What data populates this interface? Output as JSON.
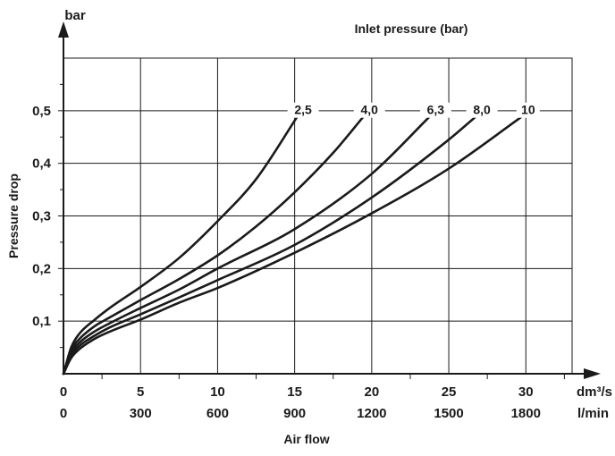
{
  "chart_data": {
    "type": "line",
    "title": "Inlet pressure (bar)",
    "xlabel": "Air flow",
    "ylabel": "Pressure drop",
    "y_unit": "bar",
    "x_unit_primary": "dm³/s",
    "x_unit_secondary": "l/min",
    "xlim": [
      0,
      33
    ],
    "ylim": [
      0,
      0.6
    ],
    "x_ticks": [
      {
        "value": 0,
        "label": "0",
        "sub": "0"
      },
      {
        "value": 5,
        "label": "5",
        "sub": "300"
      },
      {
        "value": 10,
        "label": "10",
        "sub": "600"
      },
      {
        "value": 15,
        "label": "15",
        "sub": "900"
      },
      {
        "value": 20,
        "label": "20",
        "sub": "1200"
      },
      {
        "value": 25,
        "label": "25",
        "sub": "1500"
      },
      {
        "value": 30,
        "label": "30",
        "sub": "1800"
      }
    ],
    "y_ticks": [
      {
        "value": 0.1,
        "label": "0,1"
      },
      {
        "value": 0.2,
        "label": "0,2"
      },
      {
        "value": 0.3,
        "label": "0,3"
      },
      {
        "value": 0.4,
        "label": "0,4"
      },
      {
        "value": 0.5,
        "label": "0,5"
      }
    ],
    "grid": true,
    "series": [
      {
        "name": "2,5",
        "x": [
          0,
          0.5,
          1,
          2,
          3,
          5,
          7.5,
          10,
          12.5,
          15.2
        ],
        "y": [
          0,
          0.05,
          0.075,
          0.102,
          0.125,
          0.165,
          0.22,
          0.29,
          0.37,
          0.49
        ]
      },
      {
        "name": "4,0",
        "x": [
          0,
          0.5,
          1,
          2,
          3,
          5,
          7.5,
          10,
          12.5,
          15,
          17.5,
          19.5
        ],
        "y": [
          0,
          0.045,
          0.065,
          0.09,
          0.107,
          0.14,
          0.18,
          0.225,
          0.28,
          0.345,
          0.42,
          0.49
        ]
      },
      {
        "name": "6,3",
        "x": [
          0,
          0.5,
          1,
          2,
          3,
          5,
          7.5,
          10,
          15,
          20,
          23.8
        ],
        "y": [
          0,
          0.04,
          0.058,
          0.08,
          0.096,
          0.125,
          0.16,
          0.2,
          0.275,
          0.38,
          0.49
        ]
      },
      {
        "name": "8,0",
        "x": [
          0,
          0.5,
          1,
          2,
          3,
          5,
          7.5,
          10,
          15,
          20,
          25,
          26.8
        ],
        "y": [
          0,
          0.035,
          0.052,
          0.072,
          0.088,
          0.113,
          0.145,
          0.178,
          0.245,
          0.335,
          0.445,
          0.49
        ]
      },
      {
        "name": "10",
        "x": [
          0,
          0.5,
          1,
          2,
          3,
          5,
          7.5,
          10,
          15,
          20,
          25,
          29.8
        ],
        "y": [
          0,
          0.03,
          0.046,
          0.066,
          0.08,
          0.103,
          0.135,
          0.163,
          0.23,
          0.305,
          0.39,
          0.49
        ]
      }
    ]
  }
}
